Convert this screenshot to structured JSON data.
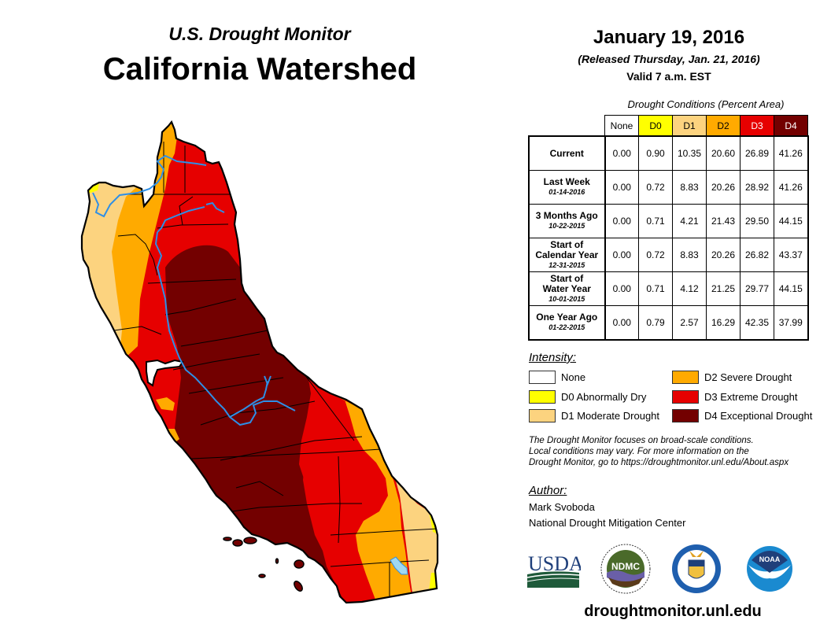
{
  "header": {
    "subtitle": "U.S. Drought Monitor",
    "title": "California Watershed",
    "date": "January 19, 2016",
    "released": "(Released Thursday, Jan. 21, 2016)",
    "valid": "Valid 7 a.m. EST"
  },
  "table": {
    "caption": "Drought Conditions (Percent Area)",
    "columns": [
      "None",
      "D0",
      "D1",
      "D2",
      "D3",
      "D4"
    ],
    "rows": [
      {
        "label": "Current",
        "label2": "",
        "date": "",
        "values": [
          "0.00",
          "0.90",
          "10.35",
          "20.60",
          "26.89",
          "41.26"
        ]
      },
      {
        "label": "Last Week",
        "label2": "",
        "date": "01-14-2016",
        "values": [
          "0.00",
          "0.72",
          "8.83",
          "20.26",
          "28.92",
          "41.26"
        ]
      },
      {
        "label": "3 Months Ago",
        "label2": "",
        "date": "10-22-2015",
        "values": [
          "0.00",
          "0.71",
          "4.21",
          "21.43",
          "29.50",
          "44.15"
        ]
      },
      {
        "label": "Start of",
        "label2": "Calendar Year",
        "date": "12-31-2015",
        "values": [
          "0.00",
          "0.72",
          "8.83",
          "20.26",
          "26.82",
          "43.37"
        ]
      },
      {
        "label": "Start of",
        "label2": "Water Year",
        "date": "10-01-2015",
        "values": [
          "0.00",
          "0.71",
          "4.12",
          "21.25",
          "29.77",
          "44.15"
        ]
      },
      {
        "label": "One Year Ago",
        "label2": "",
        "date": "01-22-2015",
        "values": [
          "0.00",
          "0.79",
          "2.57",
          "16.29",
          "42.35",
          "37.99"
        ]
      }
    ]
  },
  "legend": {
    "heading": "Intensity:",
    "items": [
      {
        "label": "None",
        "color": "#ffffff"
      },
      {
        "label": "D0 Abnormally Dry",
        "color": "#ffff00"
      },
      {
        "label": "D1 Moderate Drought",
        "color": "#fcd37f"
      },
      {
        "label": "D2 Severe Drought",
        "color": "#ffaa00"
      },
      {
        "label": "D3 Extreme Drought",
        "color": "#e60000"
      },
      {
        "label": "D4 Exceptional Drought",
        "color": "#730000"
      }
    ]
  },
  "note": {
    "line1": "The Drought Monitor focuses on broad-scale conditions.",
    "line2": "Local conditions may vary. For more information on the",
    "line3": "Drought Monitor, go to https://droughtmonitor.unl.edu/About.aspx"
  },
  "author": {
    "heading": "Author:",
    "name": "Mark Svoboda",
    "org": "National Drought Mitigation Center"
  },
  "logos": {
    "usda": "USDA",
    "ndmc": "NDMC",
    "noaa": "NOAA"
  },
  "footer": {
    "url": "droughtmonitor.unl.edu"
  },
  "colors": {
    "none": "#ffffff",
    "d0": "#ffff00",
    "d1": "#fcd37f",
    "d2": "#ffaa00",
    "d3": "#e60000",
    "d4": "#730000",
    "river": "#2e8fe6",
    "lake": "#a0d8f0"
  }
}
